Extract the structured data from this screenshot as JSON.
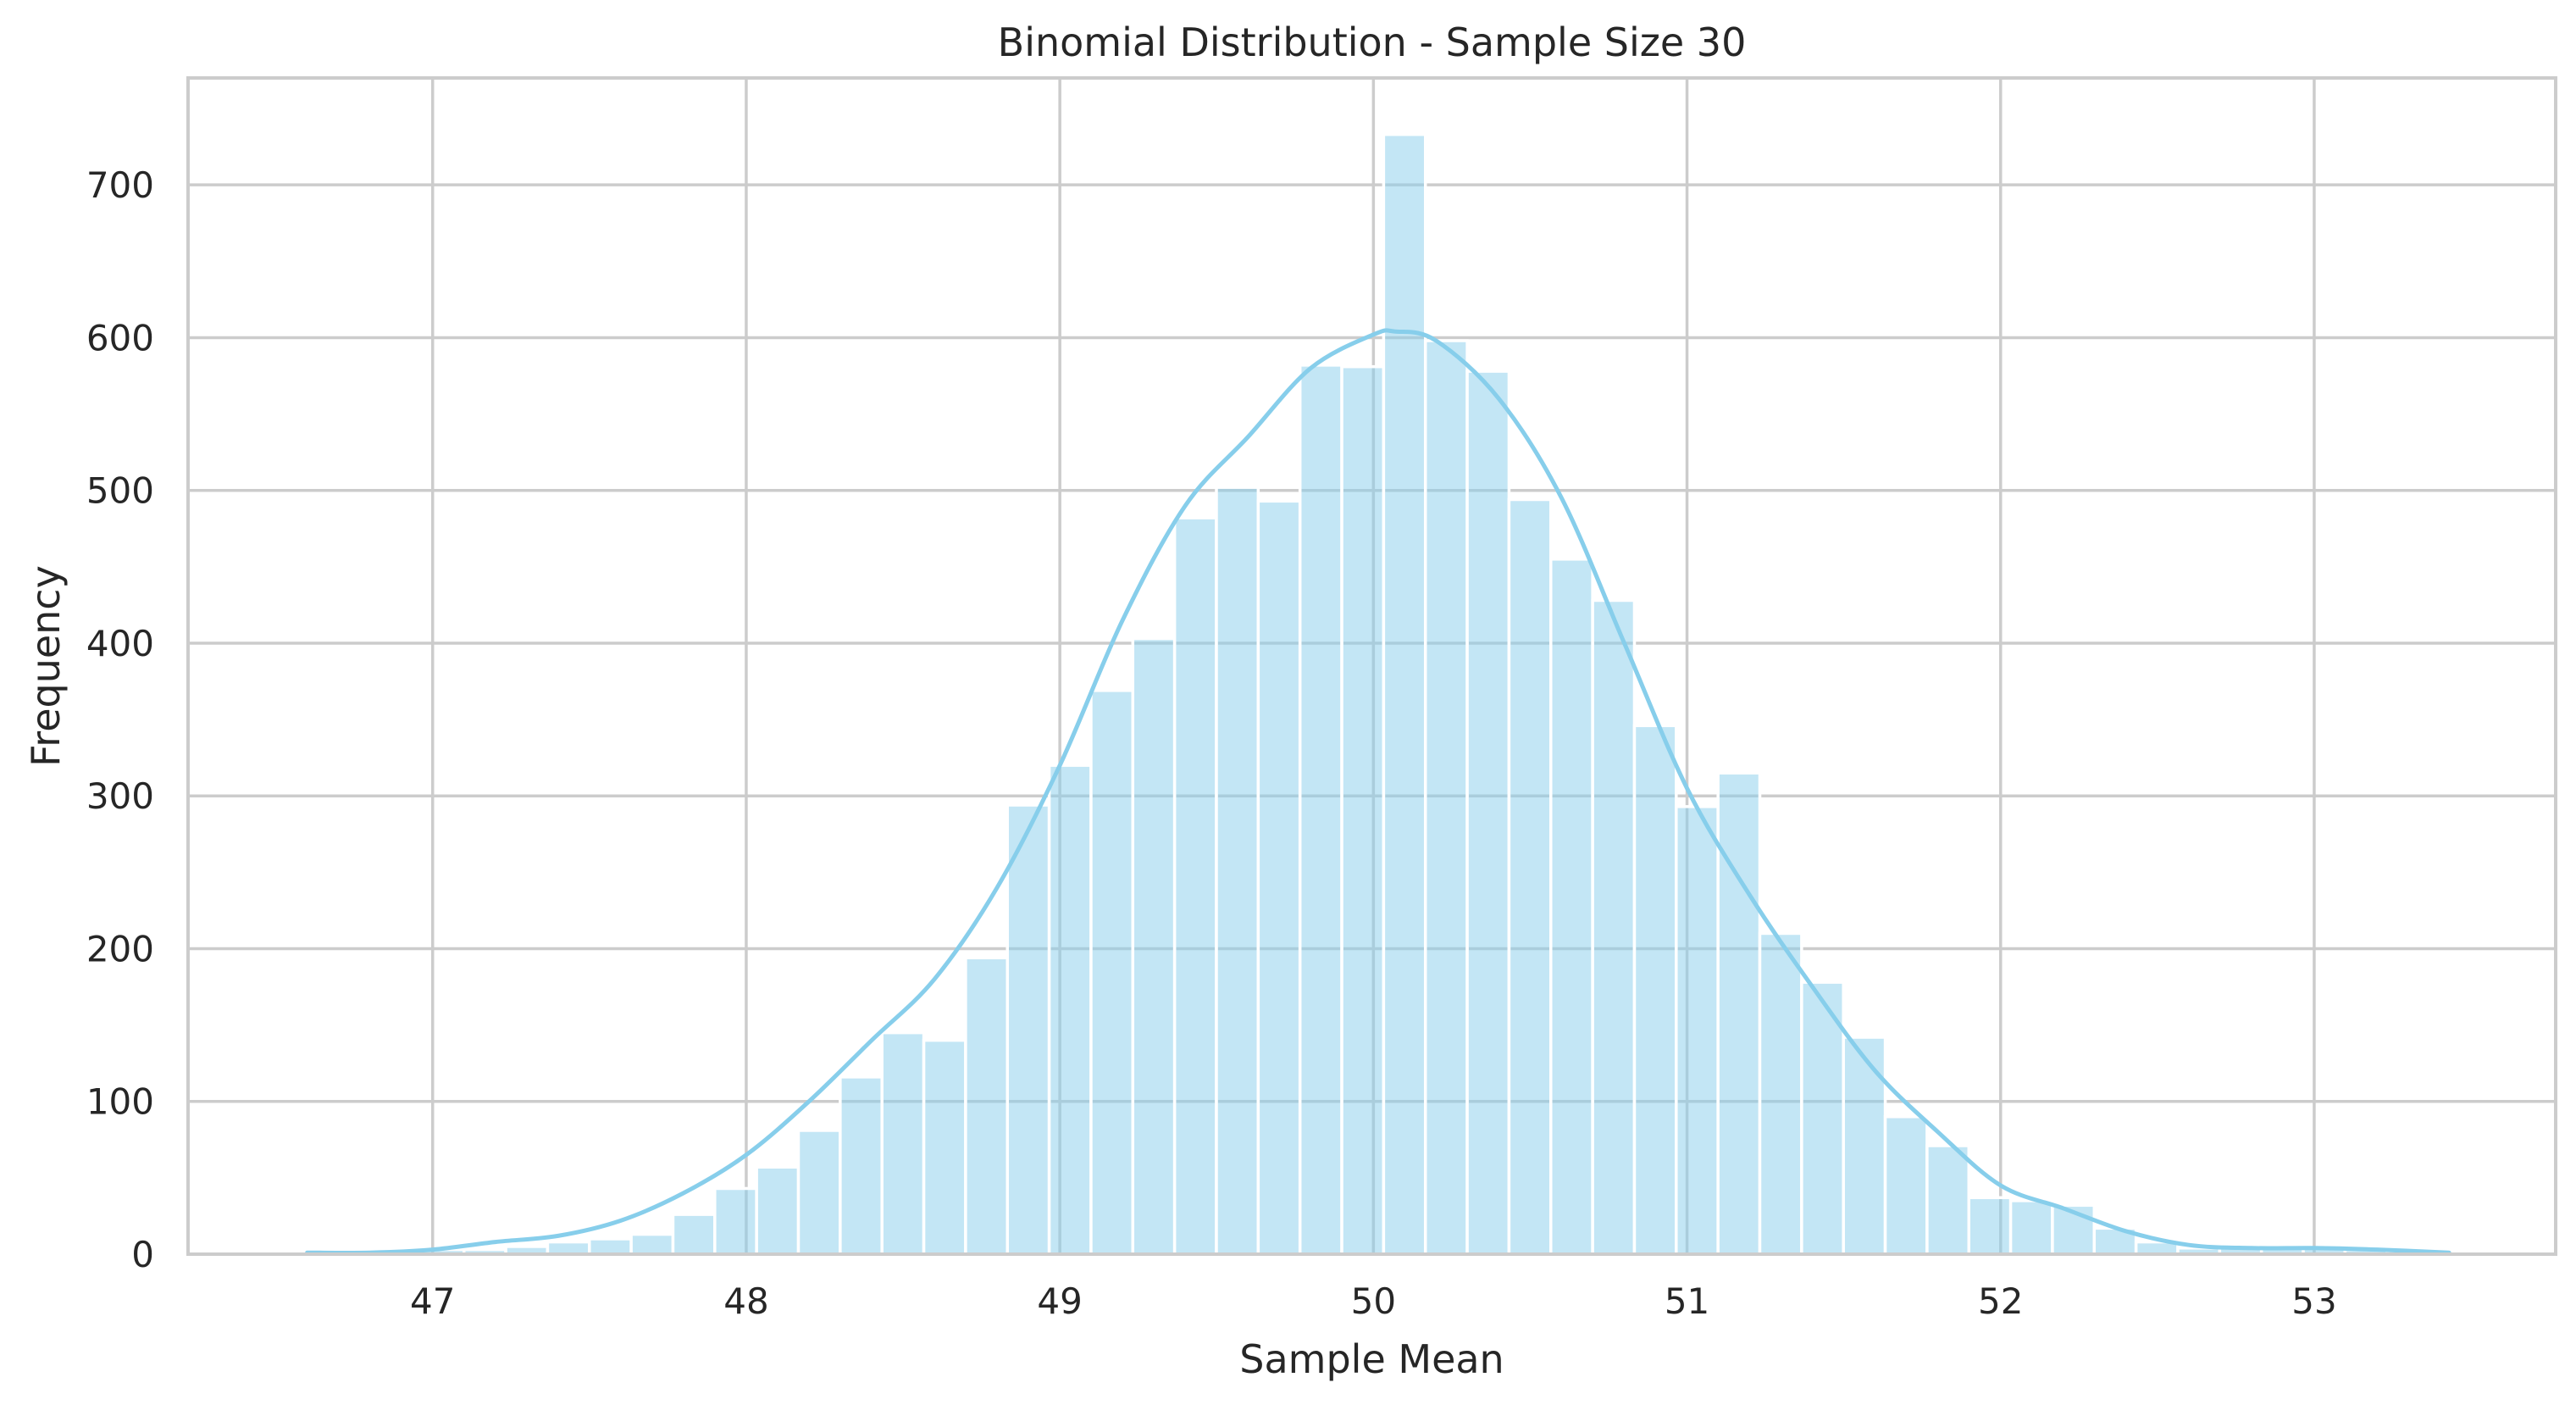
{
  "chart_data": {
    "type": "bar",
    "subtype": "histogram with kde",
    "title": "Binomial Distribution - Sample Size 30",
    "xlabel": "Sample Mean",
    "ylabel": "Frequency",
    "xlim": [
      46.22,
      53.77
    ],
    "ylim": [
      0,
      770
    ],
    "xticks": [
      47,
      48,
      49,
      50,
      51,
      52,
      53
    ],
    "yticks": [
      0,
      100,
      200,
      300,
      400,
      500,
      600,
      700
    ],
    "grid": true,
    "legend": "none",
    "bar_color": "#87ceeb",
    "bin_width": 0.1333,
    "bin_start": 46.5667,
    "values": [
      2,
      2,
      2,
      3,
      3,
      5,
      8,
      10,
      13,
      26,
      43,
      57,
      81,
      116,
      145,
      140,
      194,
      294,
      320,
      369,
      403,
      482,
      502,
      493,
      582,
      581,
      733,
      598,
      578,
      494,
      455,
      428,
      346,
      293,
      315,
      210,
      178,
      142,
      90,
      71,
      37,
      35,
      32,
      17,
      8,
      4,
      5,
      5,
      4,
      3,
      2,
      2
    ],
    "kde": {
      "x": [
        46.6,
        46.8,
        47.0,
        47.2,
        47.4,
        47.6,
        47.8,
        48.0,
        48.2,
        48.4,
        48.6,
        48.8,
        49.0,
        49.2,
        49.4,
        49.6,
        49.8,
        50.0,
        50.07,
        50.2,
        50.4,
        50.6,
        50.8,
        51.0,
        51.2,
        51.4,
        51.6,
        51.8,
        52.0,
        52.2,
        52.4,
        52.6,
        52.8,
        53.0,
        53.2,
        53.43
      ],
      "y": [
        1,
        1,
        3,
        8,
        12,
        22,
        40,
        65,
        100,
        140,
        180,
        240,
        320,
        415,
        490,
        535,
        580,
        602,
        604,
        598,
        560,
        495,
        400,
        305,
        235,
        175,
        120,
        80,
        45,
        30,
        15,
        6,
        4,
        4,
        3,
        1
      ]
    }
  }
}
